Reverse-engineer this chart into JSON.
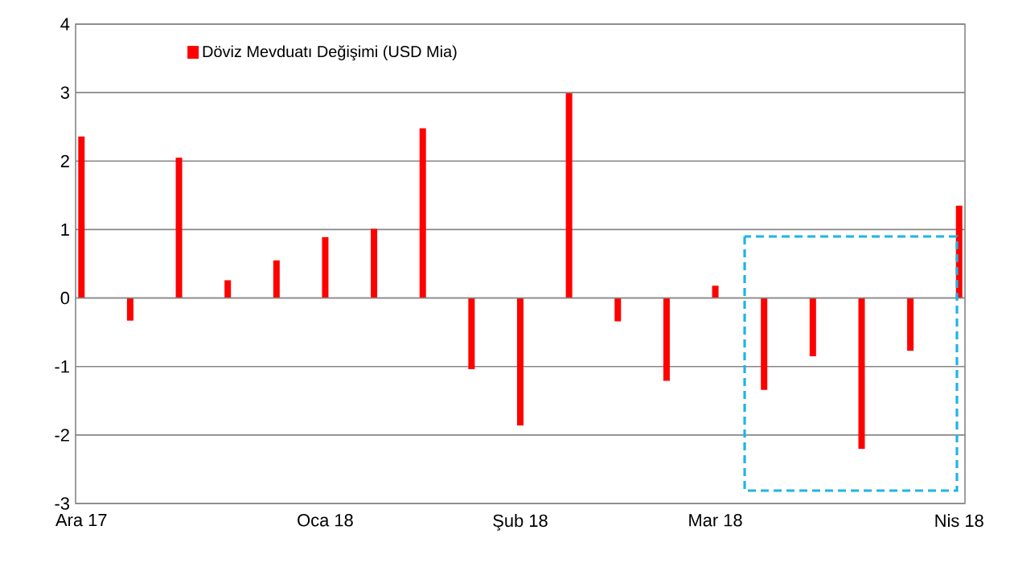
{
  "chart_data": {
    "type": "bar",
    "categories": [
      "Ara 17",
      null,
      null,
      null,
      null,
      "Oca 18",
      null,
      null,
      null,
      "Şub 18",
      null,
      null,
      null,
      "Mar 18",
      null,
      null,
      null,
      null,
      "Nis 18"
    ],
    "series": [
      {
        "name": "Döviz Mevduatı Değişimi (USD Mia)",
        "color": "#ff0000",
        "values": [
          2.36,
          -0.33,
          2.05,
          0.26,
          0.55,
          0.89,
          1.01,
          2.48,
          -1.04,
          -1.86,
          2.99,
          -0.34,
          -1.21,
          0.18,
          -1.34,
          -0.85,
          -2.2,
          -0.77,
          1.35
        ]
      }
    ],
    "ylim": [
      -3,
      4
    ],
    "yticks": [
      -3,
      -2,
      -1,
      0,
      1,
      2,
      3,
      4
    ],
    "grid": "y",
    "legend": "top left"
  }
}
